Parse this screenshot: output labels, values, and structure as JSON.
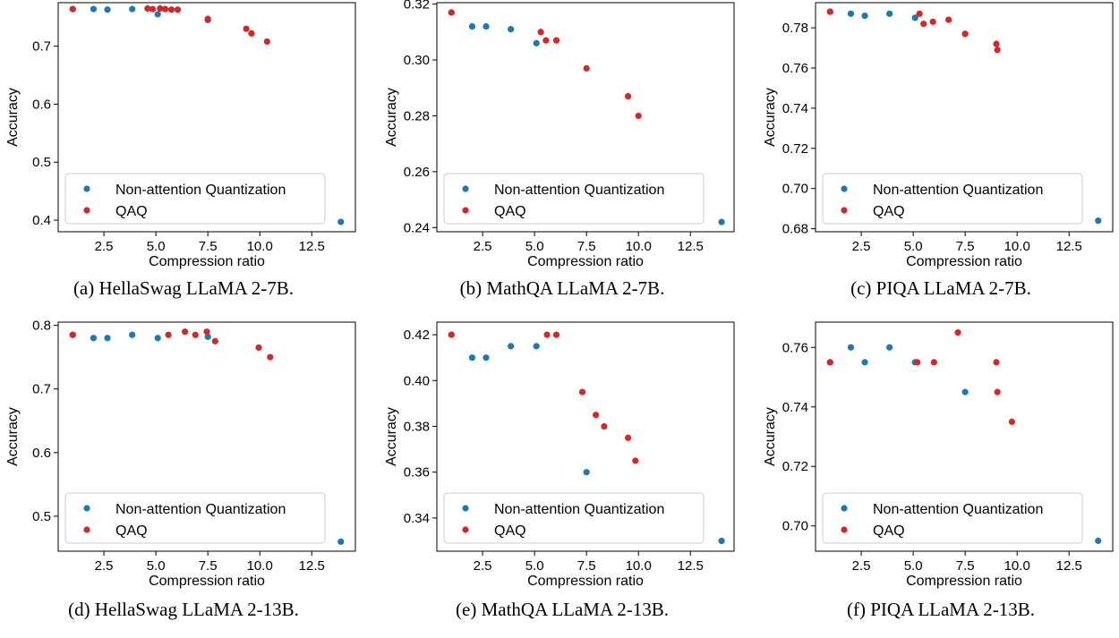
{
  "colors": {
    "non_attention": "#1f77b4",
    "qaq": "#d62728"
  },
  "chart_data": [
    {
      "type": "scatter",
      "caption": "(a) HellaSwag LLaMA 2-7B.",
      "xlabel": "Compression ratio",
      "ylabel": "Accuracy",
      "xlim": [
        0.3,
        14.6
      ],
      "ylim": [
        0.38,
        0.775
      ],
      "xticks": [
        2.5,
        5.0,
        7.5,
        10.0,
        12.5
      ],
      "yticks": [
        0.4,
        0.5,
        0.6,
        0.7
      ],
      "xtick_labels": [
        "2.5",
        "5.0",
        "7.5",
        "10.0",
        "12.5"
      ],
      "ytick_labels": [
        "0.4",
        "0.5",
        "0.6",
        "0.7"
      ],
      "legend": "lower-left",
      "series": [
        {
          "name": "Non-attention Quantization",
          "color": "#1f77b4",
          "points": [
            [
              1.0,
              0.764
            ],
            [
              2.0,
              0.764
            ],
            [
              2.67,
              0.763
            ],
            [
              3.86,
              0.764
            ],
            [
              5.09,
              0.755
            ],
            [
              7.5,
              0.745
            ],
            [
              13.9,
              0.397
            ]
          ]
        },
        {
          "name": "QAQ",
          "color": "#d62728",
          "points": [
            [
              1.0,
              0.764
            ],
            [
              4.6,
              0.765
            ],
            [
              4.85,
              0.764
            ],
            [
              5.2,
              0.765
            ],
            [
              5.45,
              0.764
            ],
            [
              5.75,
              0.763
            ],
            [
              6.05,
              0.763
            ],
            [
              7.5,
              0.747
            ],
            [
              9.35,
              0.73
            ],
            [
              9.6,
              0.722
            ],
            [
              10.35,
              0.708
            ]
          ]
        }
      ]
    },
    {
      "type": "scatter",
      "caption": "(b) MathQA LLaMA 2-7B.",
      "xlabel": "Compression ratio",
      "ylabel": "Accuracy",
      "xlim": [
        0.3,
        14.6
      ],
      "ylim": [
        0.2385,
        0.3205
      ],
      "xticks": [
        2.5,
        5.0,
        7.5,
        10.0,
        12.5
      ],
      "yticks": [
        0.24,
        0.26,
        0.28,
        0.3,
        0.32
      ],
      "xtick_labels": [
        "2.5",
        "5.0",
        "7.5",
        "10.0",
        "12.5"
      ],
      "ytick_labels": [
        "0.24",
        "0.26",
        "0.28",
        "0.30",
        "0.32"
      ],
      "legend": "lower-left",
      "series": [
        {
          "name": "Non-attention Quantization",
          "color": "#1f77b4",
          "points": [
            [
              1.0,
              0.317
            ],
            [
              2.0,
              0.312
            ],
            [
              2.67,
              0.312
            ],
            [
              3.86,
              0.311
            ],
            [
              5.09,
              0.306
            ],
            [
              14.0,
              0.242
            ]
          ]
        },
        {
          "name": "QAQ",
          "color": "#d62728",
          "points": [
            [
              1.0,
              0.317
            ],
            [
              5.3,
              0.31
            ],
            [
              5.55,
              0.307
            ],
            [
              6.05,
              0.307
            ],
            [
              7.5,
              0.297
            ],
            [
              9.5,
              0.287
            ],
            [
              10.0,
              0.28
            ]
          ]
        }
      ]
    },
    {
      "type": "scatter",
      "caption": "(c) PIQA LLaMA 2-7B.",
      "xlabel": "Compression ratio",
      "ylabel": "Accuracy",
      "xlim": [
        0.3,
        14.6
      ],
      "ylim": [
        0.6785,
        0.7925
      ],
      "xticks": [
        2.5,
        5.0,
        7.5,
        10.0,
        12.5
      ],
      "yticks": [
        0.68,
        0.7,
        0.72,
        0.74,
        0.76,
        0.78
      ],
      "xtick_labels": [
        "2.5",
        "5.0",
        "7.5",
        "10.0",
        "12.5"
      ],
      "ytick_labels": [
        "0.68",
        "0.70",
        "0.72",
        "0.74",
        "0.76",
        "0.78"
      ],
      "legend": "lower-left",
      "series": [
        {
          "name": "Non-attention Quantization",
          "color": "#1f77b4",
          "points": [
            [
              1.0,
              0.788
            ],
            [
              2.0,
              0.787
            ],
            [
              2.67,
              0.786
            ],
            [
              3.86,
              0.787
            ],
            [
              5.09,
              0.785
            ],
            [
              7.5,
              0.777
            ],
            [
              13.9,
              0.684
            ]
          ]
        },
        {
          "name": "QAQ",
          "color": "#d62728",
          "points": [
            [
              1.0,
              0.788
            ],
            [
              5.3,
              0.787
            ],
            [
              5.5,
              0.782
            ],
            [
              5.95,
              0.783
            ],
            [
              6.7,
              0.784
            ],
            [
              7.5,
              0.777
            ],
            [
              9.0,
              0.772
            ],
            [
              9.05,
              0.769
            ]
          ]
        }
      ]
    },
    {
      "type": "scatter",
      "caption": "(d) HellaSwag LLaMA 2-13B.",
      "xlabel": "Compression ratio",
      "ylabel": "Accuracy",
      "xlim": [
        0.3,
        14.6
      ],
      "ylim": [
        0.445,
        0.805
      ],
      "xticks": [
        2.5,
        5.0,
        7.5,
        10.0,
        12.5
      ],
      "yticks": [
        0.5,
        0.6,
        0.7,
        0.8
      ],
      "xtick_labels": [
        "2.5",
        "5.0",
        "7.5",
        "10.0",
        "12.5"
      ],
      "ytick_labels": [
        "0.5",
        "0.6",
        "0.7",
        "0.8"
      ],
      "legend": "lower-left",
      "series": [
        {
          "name": "Non-attention Quantization",
          "color": "#1f77b4",
          "points": [
            [
              1.0,
              0.785
            ],
            [
              2.0,
              0.78
            ],
            [
              2.67,
              0.78
            ],
            [
              3.86,
              0.785
            ],
            [
              5.09,
              0.78
            ],
            [
              7.5,
              0.782
            ],
            [
              13.9,
              0.46
            ]
          ]
        },
        {
          "name": "QAQ",
          "color": "#d62728",
          "points": [
            [
              1.0,
              0.785
            ],
            [
              5.6,
              0.785
            ],
            [
              6.4,
              0.79
            ],
            [
              6.9,
              0.785
            ],
            [
              7.45,
              0.79
            ],
            [
              7.85,
              0.775
            ],
            [
              9.95,
              0.765
            ],
            [
              10.5,
              0.75
            ]
          ]
        }
      ]
    },
    {
      "type": "scatter",
      "caption": "(e) MathQA LLaMA 2-13B.",
      "xlabel": "Compression ratio",
      "ylabel": "Accuracy",
      "xlim": [
        0.3,
        14.6
      ],
      "ylim": [
        0.3255,
        0.4255
      ],
      "xticks": [
        2.5,
        5.0,
        7.5,
        10.0,
        12.5
      ],
      "yticks": [
        0.34,
        0.36,
        0.38,
        0.4,
        0.42
      ],
      "xtick_labels": [
        "2.5",
        "5.0",
        "7.5",
        "10.0",
        "12.5"
      ],
      "ytick_labels": [
        "0.34",
        "0.36",
        "0.38",
        "0.40",
        "0.42"
      ],
      "legend": "lower-left",
      "series": [
        {
          "name": "Non-attention Quantization",
          "color": "#1f77b4",
          "points": [
            [
              1.0,
              0.42
            ],
            [
              2.0,
              0.41
            ],
            [
              2.67,
              0.41
            ],
            [
              3.86,
              0.415
            ],
            [
              5.09,
              0.415
            ],
            [
              7.5,
              0.36
            ],
            [
              14.0,
              0.33
            ]
          ]
        },
        {
          "name": "QAQ",
          "color": "#d62728",
          "points": [
            [
              1.0,
              0.42
            ],
            [
              5.6,
              0.42
            ],
            [
              6.05,
              0.42
            ],
            [
              7.3,
              0.395
            ],
            [
              7.95,
              0.385
            ],
            [
              8.35,
              0.38
            ],
            [
              9.5,
              0.375
            ],
            [
              9.85,
              0.365
            ]
          ]
        }
      ]
    },
    {
      "type": "scatter",
      "caption": "(f) PIQA LLaMA 2-13B.",
      "xlabel": "Compression ratio",
      "ylabel": "Accuracy",
      "xlim": [
        0.3,
        14.6
      ],
      "ylim": [
        0.6915,
        0.7685
      ],
      "xticks": [
        2.5,
        5.0,
        7.5,
        10.0,
        12.5
      ],
      "yticks": [
        0.7,
        0.72,
        0.74,
        0.76
      ],
      "xtick_labels": [
        "2.5",
        "5.0",
        "7.5",
        "10.0",
        "12.5"
      ],
      "ytick_labels": [
        "0.70",
        "0.72",
        "0.74",
        "0.76"
      ],
      "legend": "lower-left",
      "series": [
        {
          "name": "Non-attention Quantization",
          "color": "#1f77b4",
          "points": [
            [
              1.0,
              0.755
            ],
            [
              2.0,
              0.76
            ],
            [
              2.67,
              0.755
            ],
            [
              3.86,
              0.76
            ],
            [
              5.09,
              0.755
            ],
            [
              7.5,
              0.745
            ],
            [
              13.9,
              0.695
            ]
          ]
        },
        {
          "name": "QAQ",
          "color": "#d62728",
          "points": [
            [
              1.0,
              0.755
            ],
            [
              5.2,
              0.755
            ],
            [
              6.0,
              0.755
            ],
            [
              7.15,
              0.765
            ],
            [
              9.0,
              0.755
            ],
            [
              9.05,
              0.745
            ],
            [
              9.75,
              0.735
            ]
          ]
        }
      ]
    }
  ]
}
